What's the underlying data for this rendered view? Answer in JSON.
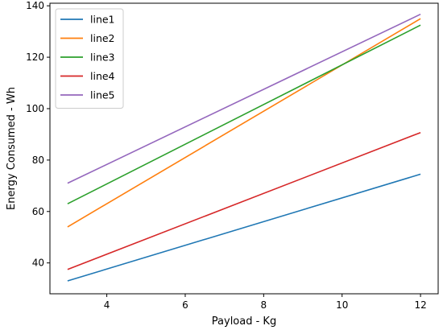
{
  "chart_data": {
    "type": "line",
    "title": "",
    "xlabel": "Payload - Kg",
    "ylabel": "Energy Consumed - Wh",
    "xlim": [
      2.55,
      12.45
    ],
    "ylim": [
      28,
      141
    ],
    "xticks": [
      4,
      6,
      8,
      10,
      12
    ],
    "yticks": [
      40,
      60,
      80,
      100,
      120,
      140
    ],
    "grid": false,
    "legend_position": "top-left",
    "x": [
      3,
      12
    ],
    "series": [
      {
        "name": "line1",
        "color": "#1f77b4",
        "values": [
          33.0,
          74.5
        ]
      },
      {
        "name": "line2",
        "color": "#ff7f0e",
        "values": [
          54.0,
          135.0
        ]
      },
      {
        "name": "line3",
        "color": "#2ca02c",
        "values": [
          63.0,
          132.5
        ]
      },
      {
        "name": "line4",
        "color": "#d62728",
        "values": [
          37.5,
          90.7
        ]
      },
      {
        "name": "line5",
        "color": "#9467bd",
        "values": [
          71.0,
          136.7
        ]
      }
    ]
  }
}
